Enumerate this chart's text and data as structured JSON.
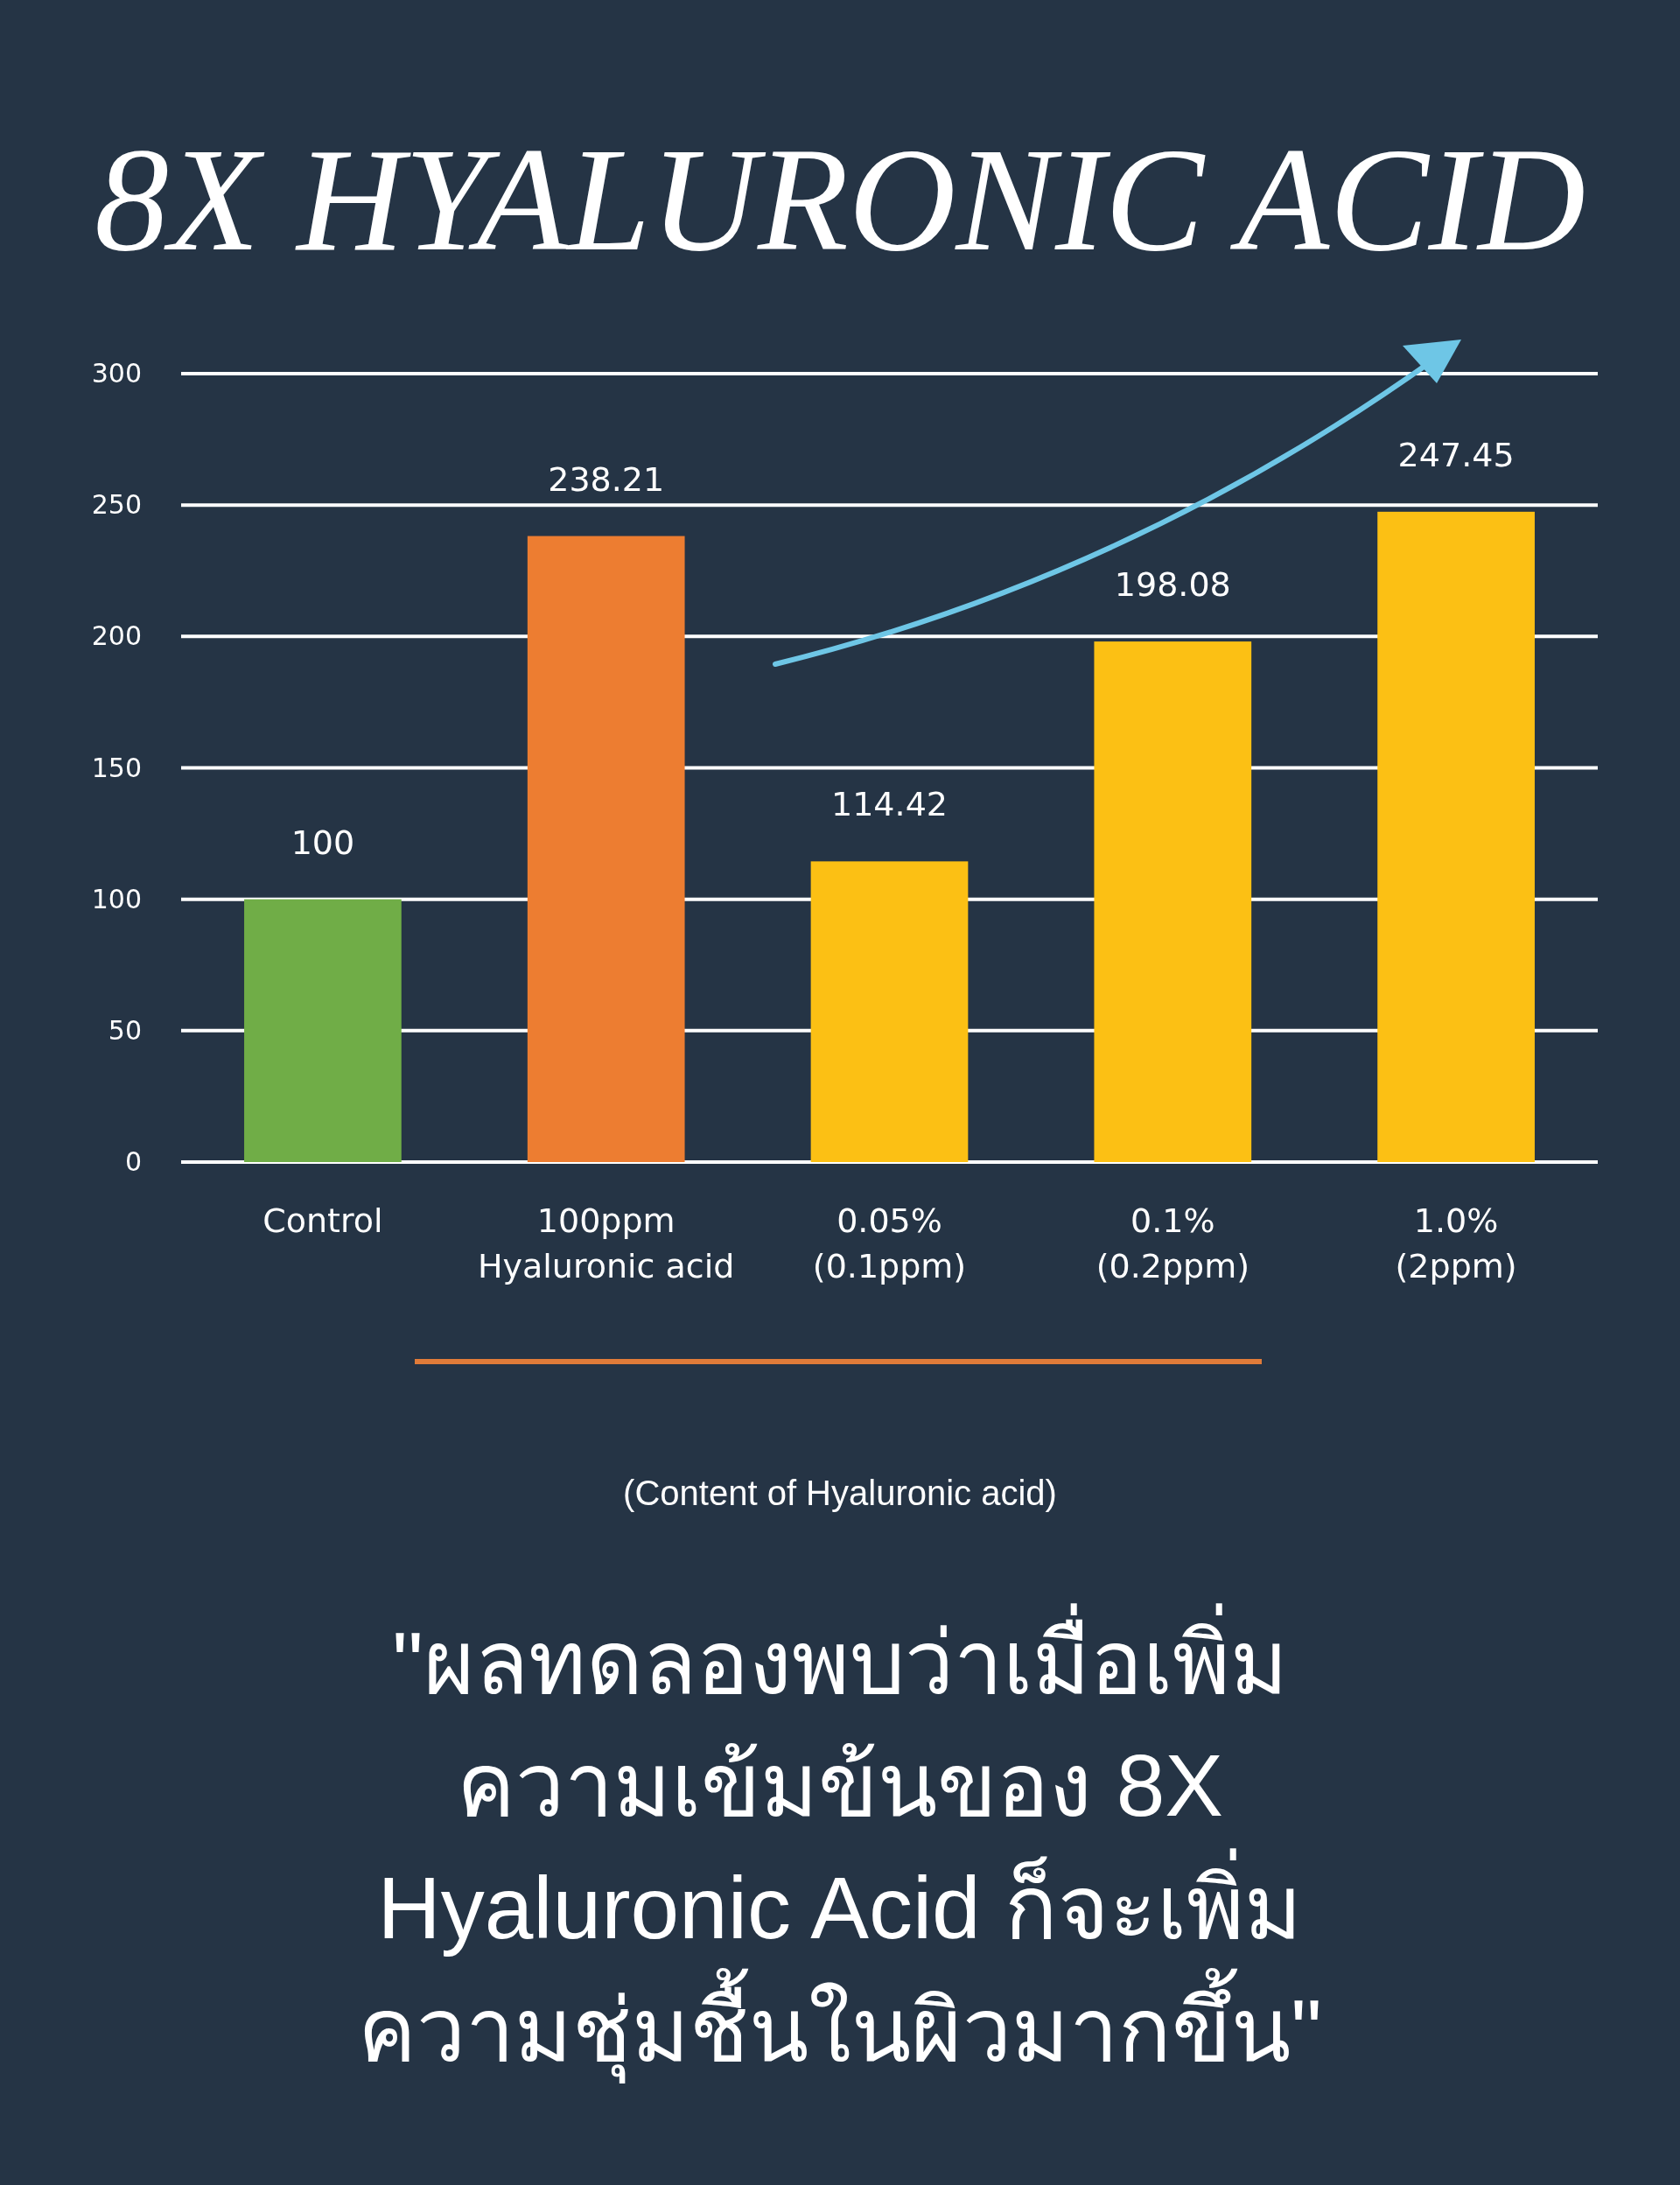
{
  "chart_data": {
    "type": "bar",
    "title": "8X HYALURONIC ACID",
    "categories": [
      "Control",
      "100ppm\nHyaluronic acid",
      "0.05%\n(0.1ppm)",
      "0.1%\n(0.2ppm)",
      "1.0%\n(2ppm)"
    ],
    "values": [
      100,
      238.21,
      114.42,
      198.08,
      247.45
    ],
    "colors": [
      "#70ad47",
      "#ed7d31",
      "#fcc014",
      "#fcc014",
      "#fcc014"
    ],
    "ylim": [
      0,
      300
    ],
    "yticks": [
      0,
      50,
      100,
      150,
      200,
      250,
      300
    ],
    "grid": "y",
    "data_labels": true,
    "annotations": [
      "(Content of Hyaluronic acid)",
      "\"ผลทดลองพบว่าเมื่อเพิ่ม\nความเข้มข้นของ 8X\nHyaluronic Acid ก็จะเพิ่ม\nความชุ่มชื้นในผิวมากขึ้น\""
    ]
  }
}
